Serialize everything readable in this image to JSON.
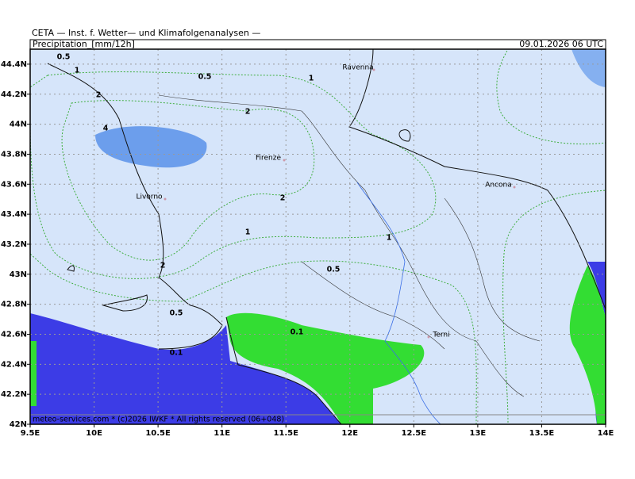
{
  "header": {
    "title": "CETA — Inst. f. Wetter— und Klimafolgenanalysen —",
    "field": "Precipitation_[mm/12h]",
    "valid": "09.01.2026 06 UTC"
  },
  "map": {
    "lonlim": [
      9.5,
      14
    ],
    "latlim": [
      42,
      44.5
    ],
    "lon_ticks": [
      {
        "value": 9.5,
        "label": "9.5E"
      },
      {
        "value": 10,
        "label": "10E"
      },
      {
        "value": 10.5,
        "label": "10.5E"
      },
      {
        "value": 11,
        "label": "11E"
      },
      {
        "value": 11.5,
        "label": "11.5E"
      },
      {
        "value": 12,
        "label": "12E"
      },
      {
        "value": 12.5,
        "label": "12.5E"
      },
      {
        "value": 13,
        "label": "13E"
      },
      {
        "value": 13.5,
        "label": "13.5E"
      },
      {
        "value": 14,
        "label": "14E"
      }
    ],
    "lat_ticks": [
      {
        "value": 42,
        "label": "42N"
      },
      {
        "value": 42.2,
        "label": "42.2N"
      },
      {
        "value": 42.4,
        "label": "42.4N"
      },
      {
        "value": 42.6,
        "label": "42.6N"
      },
      {
        "value": 42.8,
        "label": "42.8N"
      },
      {
        "value": 43,
        "label": "43N"
      },
      {
        "value": 43.2,
        "label": "43.2N"
      },
      {
        "value": 43.4,
        "label": "43.4N"
      },
      {
        "value": 43.6,
        "label": "43.6N"
      },
      {
        "value": 43.8,
        "label": "43.8N"
      },
      {
        "value": 44,
        "label": "44N"
      },
      {
        "value": 44.2,
        "label": "44.2N"
      },
      {
        "value": 44.4,
        "label": "44.4N"
      }
    ],
    "contour_labels": [
      0.5,
      1,
      0.5,
      1,
      2,
      2,
      4,
      2,
      1,
      1,
      2,
      0.5,
      0.5,
      0.1,
      0.1
    ],
    "cities": [
      "Ravenna",
      "Firenze",
      "Livorno",
      "Ancona",
      "Terni"
    ]
  },
  "footer": "meteo-services.com * (c)2026 IWKF * All rights reserved (06+048)"
}
